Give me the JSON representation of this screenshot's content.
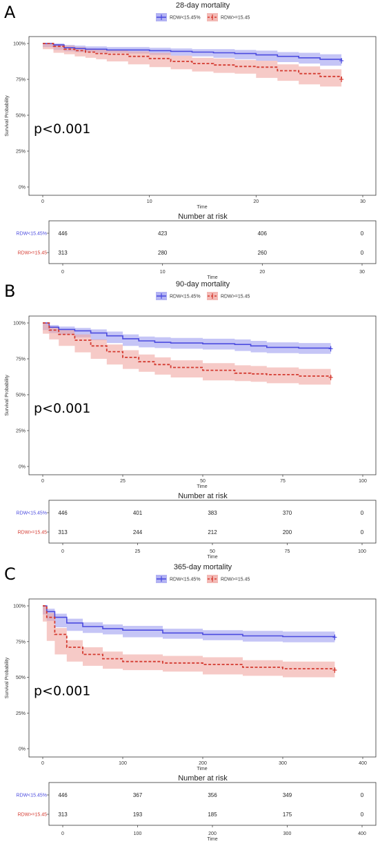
{
  "colors": {
    "group1": "#4b4bdf",
    "group2": "#d43a30",
    "band1": "#9f9ff0",
    "band2": "#f0a7a2"
  },
  "panels": [
    {
      "letter": "A",
      "title": "28-day mortality",
      "pvalue": "p<0.001",
      "xlabel": "Time",
      "ylabel": "Survival Probability",
      "risk_title": "Number at risk"
    },
    {
      "letter": "B",
      "title": "90-day mortality",
      "pvalue": "p<0.001",
      "xlabel": "Time",
      "ylabel": "Survival Probability",
      "risk_title": "Number at risk"
    },
    {
      "letter": "C",
      "title": "365-day mortality",
      "pvalue": "p<0.001",
      "xlabel": "Time",
      "ylabel": "Survival Probability",
      "risk_title": "Number at risk"
    }
  ],
  "chart_data": [
    {
      "type": "line",
      "title": "28-day mortality",
      "xlabel": "Time",
      "ylabel": "Survival Probability",
      "xlim": [
        0,
        30
      ],
      "xticks": [
        0,
        10,
        20,
        30
      ],
      "ylim": [
        0,
        100
      ],
      "yticks": [
        0,
        25,
        50,
        75,
        100
      ],
      "ytick_labels": [
        "0%",
        "25%",
        "50%",
        "75%",
        "100%"
      ],
      "legend_position": "top",
      "series": [
        {
          "name": "RDW<15.45%",
          "style": "solid",
          "x": [
            0,
            1,
            2,
            3,
            4,
            5,
            6,
            8,
            10,
            12,
            14,
            16,
            18,
            20,
            22,
            24,
            26,
            28
          ],
          "y": [
            100,
            99,
            97,
            96.5,
            96,
            96,
            95.5,
            95.5,
            95,
            94.5,
            94,
            93.5,
            93,
            92,
            91,
            90,
            89,
            88
          ],
          "lower": [
            100,
            97.5,
            95.5,
            94.5,
            94,
            94,
            93.5,
            93.5,
            93,
            92,
            91.5,
            91,
            90,
            89,
            88,
            87,
            86,
            84.5
          ],
          "upper": [
            100,
            100,
            99,
            98.5,
            98,
            98,
            97.5,
            97.5,
            97,
            96.5,
            96,
            96,
            95.5,
            95,
            94,
            93.5,
            92.5,
            91.5
          ]
        },
        {
          "name": "RDW>=15.45",
          "style": "dashed",
          "x": [
            0,
            1,
            2,
            3,
            4,
            5,
            6,
            8,
            10,
            12,
            14,
            16,
            18,
            20,
            22,
            24,
            26,
            28
          ],
          "y": [
            100,
            98,
            96,
            95,
            94,
            93,
            92.5,
            91,
            89.5,
            87.5,
            86,
            85,
            84,
            83.5,
            81,
            79,
            77,
            75
          ],
          "lower": [
            100,
            96,
            93.5,
            92.5,
            91,
            90,
            89,
            87.5,
            85.5,
            83.5,
            82,
            80.5,
            79.5,
            79,
            76,
            74,
            71.5,
            70
          ],
          "upper": [
            100,
            99.5,
            98.5,
            97.5,
            96.5,
            96,
            95.5,
            94.5,
            93.5,
            91.5,
            90,
            89.5,
            88.5,
            88,
            85.5,
            84,
            82,
            80
          ]
        }
      ],
      "risk_table": {
        "title": "Number at risk",
        "xlabel": "Time",
        "times": [
          0,
          10,
          20,
          30
        ],
        "rows": [
          {
            "name": "RDW<15.45%",
            "values": [
              "446",
              "423",
              "406",
              "0"
            ]
          },
          {
            "name": "RDW>=15.45",
            "values": [
              "313",
              "280",
              "260",
              "0"
            ]
          }
        ]
      }
    },
    {
      "type": "line",
      "title": "90-day mortality",
      "xlabel": "Time",
      "ylabel": "Survival Probability",
      "xlim": [
        0,
        100
      ],
      "xticks": [
        0,
        25,
        50,
        75,
        100
      ],
      "ylim": [
        0,
        100
      ],
      "yticks": [
        0,
        25,
        50,
        75,
        100
      ],
      "ytick_labels": [
        "0%",
        "25%",
        "50%",
        "75%",
        "100%"
      ],
      "legend_position": "top",
      "series": [
        {
          "name": "RDW<15.45%",
          "style": "solid",
          "x": [
            0,
            2,
            5,
            10,
            15,
            20,
            25,
            30,
            35,
            40,
            50,
            60,
            65,
            70,
            80,
            90
          ],
          "y": [
            100,
            97,
            95.5,
            94.5,
            93,
            91,
            89,
            87.5,
            86.5,
            86,
            85.5,
            85,
            84,
            83,
            82.5,
            82
          ],
          "lower": [
            100,
            95,
            93,
            92,
            90,
            88,
            86,
            84,
            83,
            82.5,
            82,
            81.5,
            80.5,
            79.5,
            79,
            78.5
          ],
          "upper": [
            100,
            98.5,
            97.5,
            96.5,
            95.5,
            94,
            92,
            90.5,
            90,
            89.5,
            89,
            88.5,
            87.5,
            86.5,
            86,
            85.5
          ]
        },
        {
          "name": "RDW>=15.45",
          "style": "dashed",
          "x": [
            0,
            2,
            5,
            10,
            15,
            20,
            25,
            30,
            35,
            40,
            50,
            60,
            65,
            70,
            80,
            90
          ],
          "y": [
            100,
            95,
            92,
            88,
            84,
            80,
            76,
            73,
            71,
            69,
            67,
            65,
            64.5,
            64,
            63,
            62
          ],
          "lower": [
            100,
            92.5,
            88.5,
            84,
            79.5,
            75,
            71,
            68,
            66,
            64,
            62,
            60,
            59.5,
            59,
            58,
            57
          ],
          "upper": [
            100,
            97.5,
            95,
            92,
            88.5,
            85,
            81,
            78,
            76,
            74,
            72,
            70.5,
            70,
            69,
            68,
            67
          ]
        }
      ],
      "risk_table": {
        "title": "Number at risk",
        "xlabel": "Time",
        "times": [
          0,
          25,
          50,
          75,
          100
        ],
        "rows": [
          {
            "name": "RDW<15.45%",
            "values": [
              "446",
              "401",
              "383",
              "370",
              "0"
            ]
          },
          {
            "name": "RDW>=15.45",
            "values": [
              "313",
              "244",
              "212",
              "200",
              "0"
            ]
          }
        ]
      }
    },
    {
      "type": "line",
      "title": "365-day mortality",
      "xlabel": "Time",
      "ylabel": "Survival Probability",
      "xlim": [
        0,
        400
      ],
      "xticks": [
        0,
        100,
        200,
        300,
        400
      ],
      "ylim": [
        0,
        100
      ],
      "yticks": [
        0,
        25,
        50,
        75,
        100
      ],
      "ytick_labels": [
        "0%",
        "25%",
        "50%",
        "75%",
        "100%"
      ],
      "legend_position": "top",
      "series": [
        {
          "name": "RDW<15.45%",
          "style": "solid",
          "x": [
            0,
            5,
            15,
            30,
            50,
            75,
            100,
            150,
            200,
            250,
            300,
            365
          ],
          "y": [
            100,
            96,
            92,
            88,
            85.5,
            84,
            83,
            81,
            80,
            79,
            78.5,
            78
          ],
          "lower": [
            100,
            94,
            89.5,
            85,
            82.5,
            81,
            80,
            78,
            77,
            76,
            75,
            74.5
          ],
          "upper": [
            100,
            98,
            94.5,
            91,
            88.5,
            87,
            86,
            84,
            83,
            82.5,
            82,
            81.5
          ]
        },
        {
          "name": "RDW>=15.45",
          "style": "dashed",
          "x": [
            0,
            5,
            15,
            30,
            50,
            75,
            100,
            150,
            200,
            250,
            300,
            365
          ],
          "y": [
            100,
            92,
            80,
            71,
            66,
            63,
            61,
            60,
            59,
            57,
            56,
            55
          ],
          "lower": [
            100,
            89,
            75.5,
            66,
            61,
            58,
            56,
            55,
            54,
            52,
            51,
            50
          ],
          "upper": [
            100,
            95,
            84.5,
            76,
            71,
            68,
            66,
            65,
            64,
            62,
            61,
            60
          ]
        }
      ],
      "risk_table": {
        "title": "Number at risk",
        "xlabel": "Time",
        "times": [
          0,
          100,
          200,
          300,
          400
        ],
        "rows": [
          {
            "name": "RDW<15.45%",
            "values": [
              "446",
              "367",
              "356",
              "349",
              "0"
            ]
          },
          {
            "name": "RDW>=15.45",
            "values": [
              "313",
              "193",
              "185",
              "175",
              "0"
            ]
          }
        ]
      }
    }
  ]
}
